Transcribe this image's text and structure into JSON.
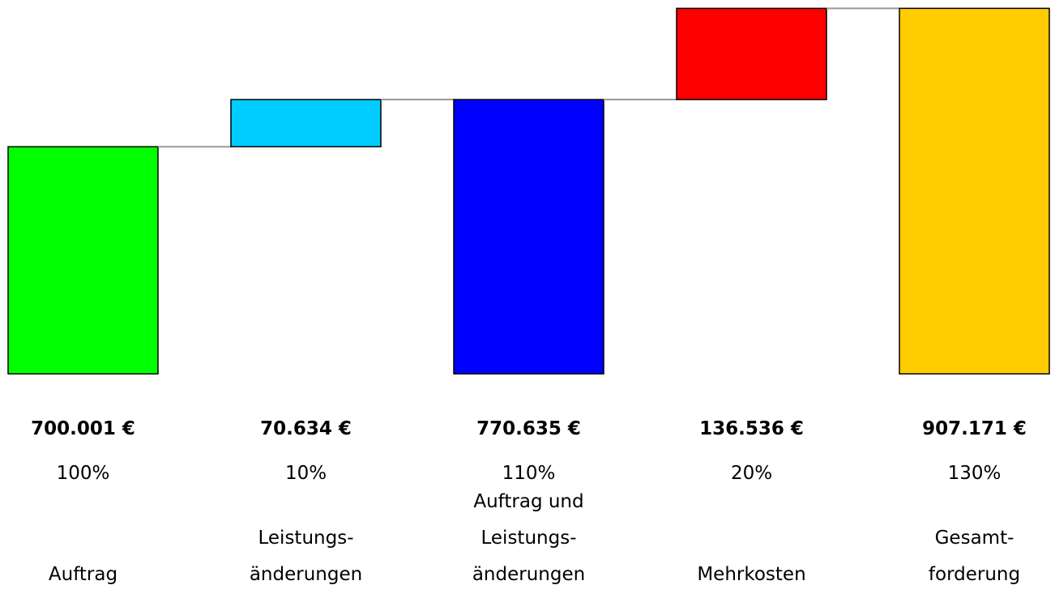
{
  "chart_data": {
    "type": "waterfall",
    "categories": [
      [
        "Auftrag"
      ],
      [
        "Leistungs-",
        "änderungen"
      ],
      [
        "Auftrag und",
        "Leistungs-",
        "änderungen"
      ],
      [
        "Mehrkosten"
      ],
      [
        "Gesamt-",
        "forderung"
      ]
    ],
    "values": [
      700001,
      70634,
      770635,
      136536,
      907171
    ],
    "value_labels": [
      "700.001 €",
      "70.634 €",
      "770.635 €",
      "136.536 €",
      "907.171 €"
    ],
    "percent_labels": [
      "100%",
      "10%",
      "110%",
      "20%",
      "130%"
    ],
    "measure": [
      "total",
      "delta",
      "total",
      "delta",
      "total"
    ],
    "colors": [
      "#00ff00",
      "#00ccff",
      "#0000ff",
      "#ff0000",
      "#ffcc00"
    ],
    "ylim": [
      360000,
      910000
    ]
  }
}
